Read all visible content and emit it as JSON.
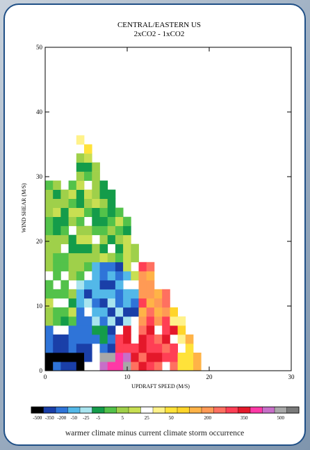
{
  "chart_data": {
    "type": "heatmap",
    "title": "CENTRAL/EASTERN US",
    "subtitle": "2xCO2 - 1xCO2",
    "xlabel": "UPDRAFT SPEED (M/S)",
    "ylabel": "WIND SHEAR (M/S)",
    "xlim": [
      0,
      30
    ],
    "ylim": [
      0,
      50
    ],
    "x_ticks": [
      0,
      10,
      20,
      30
    ],
    "y_ticks": [
      0,
      10,
      20,
      30,
      40,
      50
    ],
    "colorbar": {
      "labels": [
        "-500",
        "-350",
        "-200",
        "-50",
        "-25",
        "-5",
        "5",
        "25",
        "50",
        "200",
        "350",
        "500"
      ],
      "colors": [
        "#000000",
        "#1a3fa8",
        "#2f74d8",
        "#53b8e8",
        "#a8e4ef",
        "#149c4a",
        "#53c24a",
        "#9fd04a",
        "#c8df52",
        "#ffffff",
        "#fff28a",
        "#ffe23a",
        "#ffd52a",
        "#ffb347",
        "#ff9a55",
        "#ff7060",
        "#ff3f55",
        "#e4182a",
        "#ff39a6",
        "#c76fc8",
        "#a8a8a8",
        "#7a7a7a"
      ]
    },
    "caption": "warmer climate minus current climate storm occurrence",
    "grid": false
  }
}
